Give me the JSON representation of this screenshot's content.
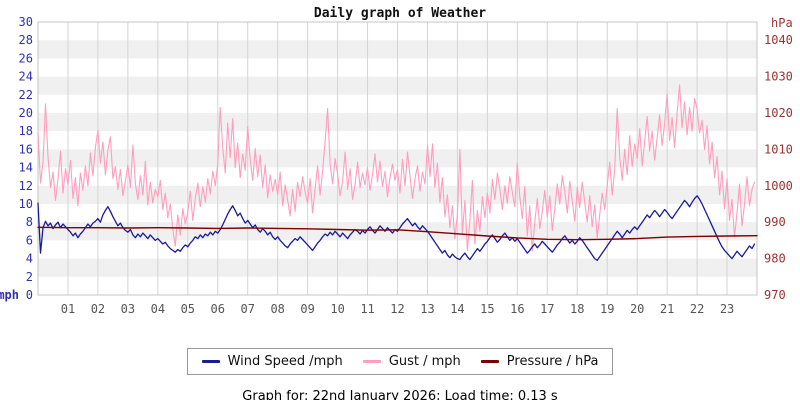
{
  "title": "Daily graph of Weather",
  "footer": {
    "text": "Graph for: 22nd January 2026; Load time: 0.13 s"
  },
  "legend": {
    "items": [
      {
        "label": "Wind Speed /mph",
        "color": "#1a1a99"
      },
      {
        "label": "Gust / mph",
        "color": "#ff9ebd"
      },
      {
        "label": "Pressure / hPa",
        "color": "#7d0000"
      }
    ]
  },
  "chart_data": {
    "type": "line",
    "title": "Daily graph of Weather",
    "x_unit": "hour of day",
    "x_tick_labels": [
      "01",
      "02",
      "03",
      "04",
      "05",
      "06",
      "07",
      "08",
      "09",
      "10",
      "11",
      "12",
      "13",
      "14",
      "15",
      "16",
      "17",
      "18",
      "19",
      "20",
      "21",
      "22",
      "23"
    ],
    "left_axis": {
      "label": "mph",
      "color": "#3030b0",
      "range": [
        0,
        30
      ],
      "ticks": [
        0,
        2,
        4,
        6,
        8,
        10,
        12,
        14,
        16,
        18,
        20,
        22,
        24,
        26,
        28,
        30
      ]
    },
    "right_axis": {
      "label": "hPa",
      "color": "#993333",
      "range": [
        970,
        1045
      ],
      "ticks": [
        970,
        980,
        990,
        1000,
        1010,
        1020,
        1030,
        1040
      ]
    },
    "grid": {
      "band_light": "#ffffff",
      "band_dark": "#f0f0f0",
      "line_color": "#d4d4d4",
      "border_color": "#c4c4c4"
    },
    "series": [
      {
        "name": "Wind Speed /mph",
        "axis": "left",
        "color": "#1a1a99",
        "interval_minutes": 5,
        "values": [
          10.1,
          4.6,
          7.4,
          8.1,
          7.6,
          7.9,
          7.3,
          7.7,
          8.0,
          7.4,
          7.8,
          7.5,
          7.2,
          6.9,
          6.5,
          6.8,
          6.3,
          6.7,
          7.0,
          7.4,
          7.8,
          7.5,
          7.9,
          8.1,
          8.4,
          8.0,
          8.8,
          9.3,
          9.7,
          9.2,
          8.6,
          8.1,
          7.6,
          7.9,
          7.4,
          7.1,
          6.9,
          7.2,
          6.6,
          6.3,
          6.7,
          6.4,
          6.8,
          6.5,
          6.2,
          6.6,
          6.3,
          6.0,
          6.2,
          5.9,
          5.6,
          5.8,
          5.4,
          5.1,
          4.9,
          4.7,
          5.0,
          4.8,
          5.2,
          5.5,
          5.3,
          5.7,
          6.0,
          6.4,
          6.2,
          6.6,
          6.3,
          6.7,
          6.5,
          6.9,
          6.6,
          7.0,
          6.8,
          7.2,
          7.7,
          8.3,
          8.9,
          9.4,
          9.8,
          9.3,
          8.7,
          9.0,
          8.4,
          7.9,
          8.2,
          7.8,
          7.4,
          7.7,
          7.2,
          6.9,
          7.3,
          7.0,
          6.6,
          6.9,
          6.4,
          6.1,
          6.4,
          6.0,
          5.7,
          5.4,
          5.2,
          5.6,
          5.9,
          6.2,
          6.0,
          6.4,
          6.1,
          5.8,
          5.5,
          5.2,
          4.9,
          5.3,
          5.7,
          6.0,
          6.4,
          6.7,
          6.5,
          6.9,
          6.6,
          7.0,
          6.7,
          6.4,
          6.8,
          6.5,
          6.2,
          6.6,
          6.9,
          7.2,
          7.0,
          6.7,
          7.1,
          6.8,
          7.2,
          7.5,
          7.1,
          6.8,
          7.2,
          7.6,
          7.3,
          7.0,
          7.4,
          7.1,
          6.8,
          7.2,
          7.0,
          7.4,
          7.8,
          8.1,
          8.4,
          8.0,
          7.6,
          7.9,
          7.5,
          7.2,
          7.6,
          7.3,
          7.0,
          6.6,
          6.2,
          5.8,
          5.4,
          5.0,
          4.6,
          4.9,
          4.4,
          4.1,
          4.5,
          4.2,
          4.0,
          3.9,
          4.3,
          4.6,
          4.2,
          3.9,
          4.3,
          4.7,
          5.1,
          4.8,
          5.2,
          5.6,
          5.9,
          6.3,
          6.6,
          6.2,
          5.8,
          6.1,
          6.5,
          6.8,
          6.4,
          6.0,
          6.3,
          5.9,
          6.2,
          5.8,
          5.4,
          5.0,
          4.6,
          4.9,
          5.3,
          5.6,
          5.2,
          5.5,
          5.9,
          5.6,
          5.3,
          5.0,
          4.7,
          5.1,
          5.5,
          5.8,
          6.2,
          6.5,
          6.1,
          5.7,
          6.0,
          5.6,
          5.9,
          6.3,
          6.0,
          5.6,
          5.2,
          4.8,
          4.4,
          4.0,
          3.8,
          4.2,
          4.6,
          5.0,
          5.4,
          5.8,
          6.2,
          6.6,
          7.0,
          6.7,
          6.3,
          6.7,
          7.1,
          6.8,
          7.2,
          7.5,
          7.2,
          7.6,
          8.0,
          8.4,
          8.8,
          8.5,
          8.9,
          9.3,
          9.0,
          8.6,
          9.0,
          9.4,
          9.1,
          8.7,
          8.4,
          8.8,
          9.2,
          9.6,
          10.0,
          10.4,
          10.1,
          9.7,
          10.2,
          10.6,
          10.9,
          10.5,
          10.0,
          9.4,
          8.8,
          8.2,
          7.6,
          7.0,
          6.4,
          5.8,
          5.3,
          4.9,
          4.6,
          4.3,
          4.0,
          4.4,
          4.8,
          4.5,
          4.2,
          4.6,
          5.0,
          5.4,
          5.1,
          5.6
        ]
      },
      {
        "name": "Gust / mph",
        "axis": "left",
        "color": "#ff9ebd",
        "interval_minutes": 5,
        "values": [
          17.9,
          12.3,
          14.6,
          21.0,
          15.2,
          11.8,
          13.5,
          10.4,
          12.7,
          15.8,
          11.2,
          13.9,
          12.1,
          14.8,
          10.6,
          12.9,
          9.8,
          13.4,
          11.5,
          14.2,
          12.0,
          15.6,
          13.1,
          16.2,
          18.1,
          14.5,
          16.8,
          13.2,
          15.9,
          17.4,
          12.8,
          14.1,
          11.6,
          13.8,
          10.9,
          12.5,
          14.3,
          11.8,
          16.5,
          12.2,
          10.5,
          13.1,
          11.0,
          14.7,
          9.9,
          12.4,
          10.1,
          11.6,
          10.8,
          12.6,
          9.4,
          11.2,
          8.5,
          10.0,
          7.2,
          5.4,
          8.8,
          6.6,
          9.5,
          7.8,
          9.1,
          11.4,
          8.2,
          10.6,
          12.3,
          9.7,
          11.9,
          10.2,
          12.8,
          11.1,
          13.6,
          12.0,
          14.5,
          20.6,
          16.2,
          13.4,
          18.9,
          15.1,
          19.4,
          14.0,
          16.7,
          12.9,
          15.5,
          13.7,
          18.5,
          14.9,
          12.6,
          16.1,
          13.0,
          15.4,
          11.8,
          14.3,
          10.7,
          13.2,
          11.4,
          12.7,
          11.0,
          13.5,
          9.8,
          12.1,
          10.4,
          8.7,
          11.6,
          9.2,
          12.4,
          10.8,
          13.0,
          11.3,
          10.1,
          12.8,
          9.0,
          11.7,
          14.2,
          11.0,
          13.6,
          16.8,
          20.5,
          14.4,
          12.2,
          15.0,
          13.3,
          10.9,
          12.5,
          15.7,
          11.6,
          13.9,
          10.5,
          12.2,
          14.6,
          11.8,
          13.4,
          12.1,
          14.0,
          11.5,
          13.2,
          15.5,
          12.4,
          14.7,
          11.9,
          13.6,
          10.8,
          12.9,
          14.4,
          12.6,
          13.8,
          11.2,
          14.9,
          12.0,
          15.7,
          13.1,
          10.6,
          12.8,
          14.2,
          11.4,
          13.5,
          12.2,
          16.4,
          13.0,
          16.6,
          11.8,
          14.5,
          10.2,
          12.9,
          8.6,
          11.0,
          7.4,
          9.8,
          6.2,
          8.9,
          16.0,
          6.8,
          10.4,
          4.9,
          8.2,
          12.6,
          5.6,
          9.3,
          7.0,
          10.8,
          8.5,
          11.2,
          9.0,
          12.7,
          10.5,
          13.4,
          11.6,
          9.4,
          12.0,
          10.1,
          13.0,
          11.3,
          9.7,
          14.5,
          10.8,
          8.4,
          11.9,
          6.5,
          9.8,
          4.8,
          8.0,
          10.6,
          7.3,
          9.2,
          11.5,
          8.6,
          10.9,
          7.1,
          9.5,
          12.2,
          10.0,
          13.1,
          11.4,
          9.0,
          12.5,
          10.3,
          8.1,
          11.8,
          9.6,
          12.4,
          10.2,
          8.0,
          10.9,
          7.5,
          9.9,
          6.3,
          8.8,
          11.2,
          9.4,
          12.0,
          14.6,
          11.0,
          13.8,
          20.5,
          15.2,
          12.6,
          16.0,
          13.2,
          17.5,
          14.1,
          16.6,
          15.0,
          18.3,
          14.2,
          16.9,
          19.6,
          15.8,
          18.0,
          14.8,
          17.2,
          19.8,
          16.4,
          18.8,
          22.1,
          17.0,
          19.5,
          16.2,
          20.0,
          23.1,
          18.4,
          21.2,
          17.6,
          20.6,
          18.0,
          21.6,
          20.4,
          17.8,
          19.2,
          16.0,
          18.6,
          14.4,
          16.8,
          12.9,
          15.2,
          11.0,
          13.6,
          9.5,
          12.8,
          8.2,
          10.5,
          6.4,
          9.0,
          12.2,
          7.6,
          10.0,
          13.0,
          9.8,
          11.6,
          12.4
        ]
      },
      {
        "name": "Pressure / hPa",
        "axis": "right",
        "color": "#7d0000",
        "interval_minutes": 60,
        "values": [
          988.6,
          988.5,
          988.5,
          988.4,
          988.5,
          988.4,
          988.3,
          988.4,
          988.3,
          988.2,
          988.0,
          987.8,
          987.9,
          987.4,
          986.8,
          986.2,
          985.7,
          985.3,
          985.2,
          985.3,
          985.5,
          985.9,
          986.1,
          986.2,
          986.3
        ]
      }
    ]
  }
}
